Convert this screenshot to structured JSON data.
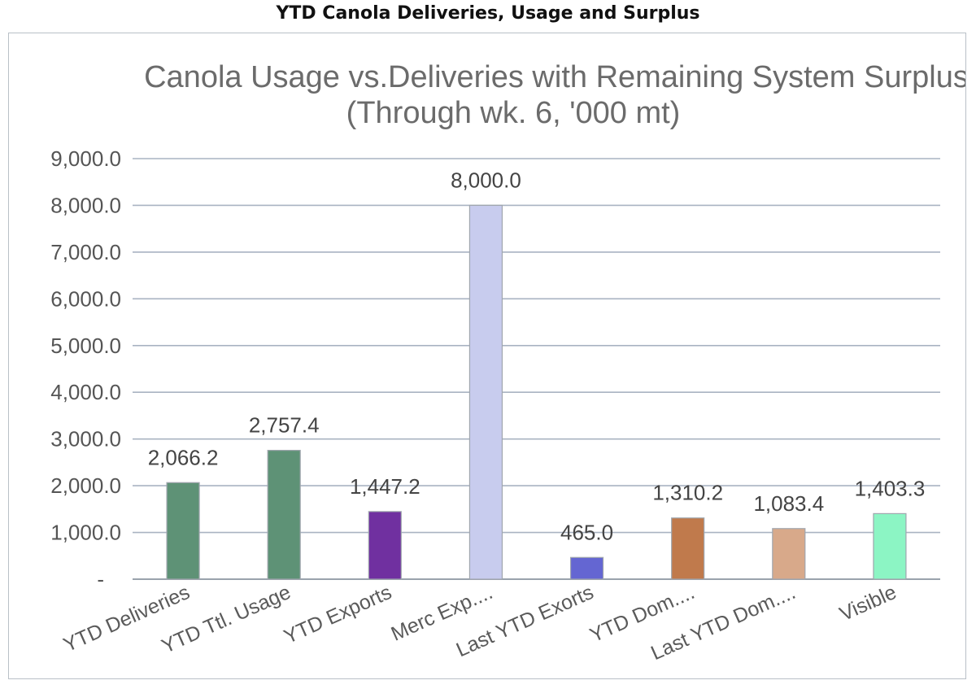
{
  "header": {
    "title": "YTD Canola Deliveries, Usage and Surplus"
  },
  "chart_data": {
    "type": "bar",
    "title_lines": [
      "Canola Usage vs.Deliveries with Remaining System Surplus",
      "(Through wk. 6,  '000 mt)"
    ],
    "xlabel": "",
    "ylabel": "",
    "ylim": [
      0,
      9000
    ],
    "y_ticks": [
      {
        "value": 0,
        "label": "-"
      },
      {
        "value": 1000,
        "label": "1,000.0"
      },
      {
        "value": 2000,
        "label": "2,000.0"
      },
      {
        "value": 3000,
        "label": "3,000.0"
      },
      {
        "value": 4000,
        "label": "4,000.0"
      },
      {
        "value": 5000,
        "label": "5,000.0"
      },
      {
        "value": 6000,
        "label": "6,000.0"
      },
      {
        "value": 7000,
        "label": "7,000.0"
      },
      {
        "value": 8000,
        "label": "8,000.0"
      },
      {
        "value": 9000,
        "label": "9,000.0"
      }
    ],
    "grid": true,
    "legend": "none",
    "categories": [
      "YTD Deliveries",
      "YTD Ttl. Usage",
      "YTD Exports",
      "Merc Exp....",
      "Last YTD Exorts",
      "YTD Dom....",
      "Last YTD Dom....",
      "Visible"
    ],
    "values": [
      2066.2,
      2757.4,
      1447.2,
      8000.0,
      465.0,
      1310.2,
      1083.4,
      1403.3
    ],
    "data_labels": [
      "2,066.2",
      "2,757.4",
      "1,447.2",
      "8,000.0",
      "465.0",
      "1,310.2",
      "1,083.4",
      "1,403.3"
    ],
    "colors": [
      "#5e9276",
      "#5e9276",
      "#7030a0",
      "#c8ccee",
      "#6466d2",
      "#c07a4c",
      "#d8a98a",
      "#8cf5c4"
    ]
  }
}
